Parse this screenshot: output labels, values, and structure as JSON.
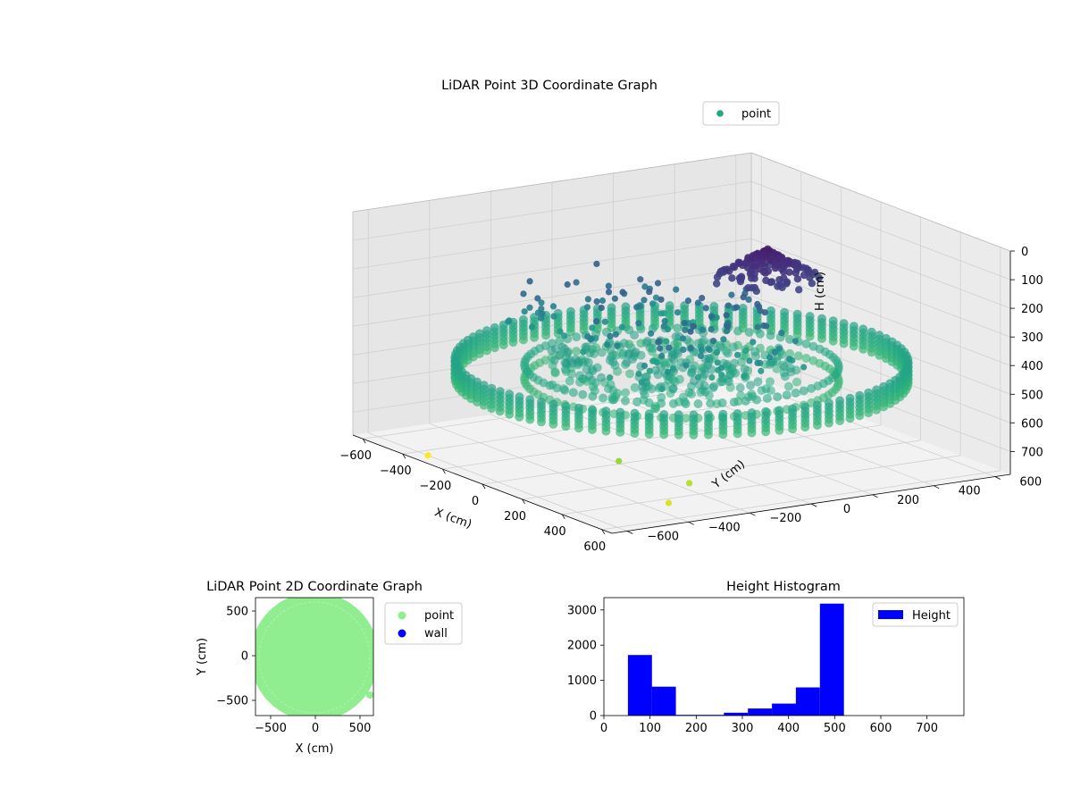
{
  "chart_data": [
    {
      "type": "scatter",
      "title": "LiDAR Point 3D Coordinate Graph",
      "xlabel": "X (cm)",
      "ylabel": "Y (cm)",
      "zlabel": "H (cm)",
      "xlim": [
        -650,
        650
      ],
      "ylim": [
        -650,
        650
      ],
      "zlim": [
        780,
        0
      ],
      "xticks": [
        -600,
        -400,
        -200,
        0,
        200,
        400,
        600
      ],
      "yticks": [
        -600,
        -400,
        -200,
        0,
        200,
        400,
        600
      ],
      "zticks": [
        0,
        100,
        200,
        300,
        400,
        500,
        600,
        700
      ],
      "legend": [
        "point"
      ],
      "legend_placement": "top-right",
      "colormap": "viridis",
      "grid": true,
      "rings": [
        {
          "shape": "circle",
          "radius": 620,
          "h_min": 450,
          "h_max": 520
        },
        {
          "shape": "circle",
          "radius": 430,
          "h_min": 470,
          "h_max": 520
        }
      ],
      "cluster": {
        "x": 120,
        "y": 200,
        "h_min": 60,
        "h_max": 160
      },
      "scattered_points": "approx. 150 points at x −450…350, y −300…250, h 230…460",
      "outliers": [
        {
          "x": -350,
          "y": -600,
          "h": 780
        },
        {
          "x": 300,
          "y": -400,
          "h": 660
        },
        {
          "x": 500,
          "y": -300,
          "h": 700
        },
        {
          "x": 550,
          "y": -400,
          "h": 740
        }
      ]
    },
    {
      "type": "scatter",
      "title": "LiDAR Point 2D Coordinate Graph",
      "xlabel": "X (cm)",
      "ylabel": "Y (cm)",
      "xlim": [
        -670,
        650
      ],
      "ylim": [
        -670,
        650
      ],
      "xticks": [
        -500,
        0,
        500
      ],
      "yticks": [
        -500,
        0,
        500
      ],
      "series": [
        {
          "name": "point",
          "color": "#90ee90"
        },
        {
          "name": "wall",
          "color": "#0000ff"
        }
      ],
      "legend_placement": "outside right"
    },
    {
      "type": "bar",
      "title": "Height Histogram",
      "xlim": [
        0,
        780
      ],
      "ylim": [
        0,
        3350
      ],
      "xticks": [
        0,
        100,
        200,
        300,
        400,
        500,
        600,
        700
      ],
      "yticks": [
        0,
        1000,
        2000,
        3000
      ],
      "bin_edges": [
        52,
        104,
        156,
        208,
        260,
        312,
        364,
        416,
        468,
        520
      ],
      "series": [
        {
          "name": "Height",
          "color": "#0000ff",
          "values": [
            1720,
            820,
            20,
            20,
            80,
            200,
            340,
            800,
            3180
          ]
        }
      ],
      "legend_placement": "top-right"
    }
  ]
}
